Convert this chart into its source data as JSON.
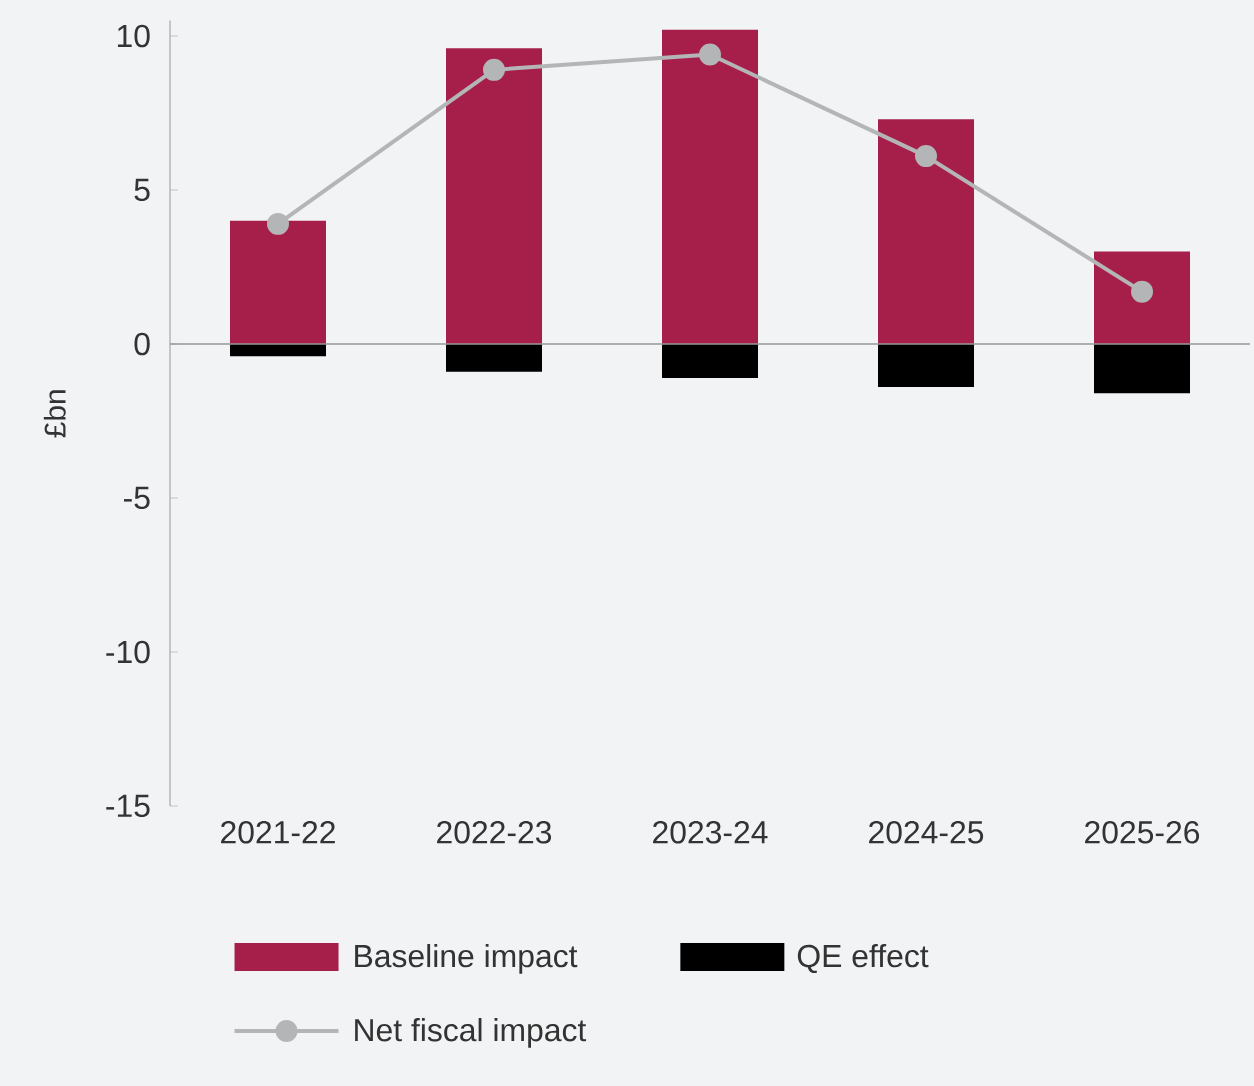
{
  "chart_data": {
    "type": "bar",
    "stacked": true,
    "ylabel": "£bn",
    "categories": [
      "2021-22",
      "2022-23",
      "2023-24",
      "2024-25",
      "2025-26"
    ],
    "series": [
      {
        "name": "Baseline impact",
        "color": "#a51f4a",
        "values": [
          4.0,
          9.6,
          10.2,
          7.3,
          3.0
        ]
      },
      {
        "name": "QE effect",
        "color": "#000000",
        "values": [
          -0.4,
          -0.9,
          -1.1,
          -1.4,
          -1.6
        ]
      },
      {
        "name": "Net fiscal impact",
        "type": "line",
        "color": "#b4b5b6",
        "marker": "circle",
        "values": [
          3.9,
          8.9,
          9.4,
          6.1,
          1.7
        ]
      }
    ],
    "ref_lines": [
      {
        "axis": "y",
        "value": 0,
        "color": "#999999"
      }
    ],
    "ylim": [
      -15,
      10.5
    ],
    "yticks": [
      -15,
      -10,
      -5,
      0,
      5,
      10
    ],
    "grid": false,
    "legend": "bottom"
  }
}
